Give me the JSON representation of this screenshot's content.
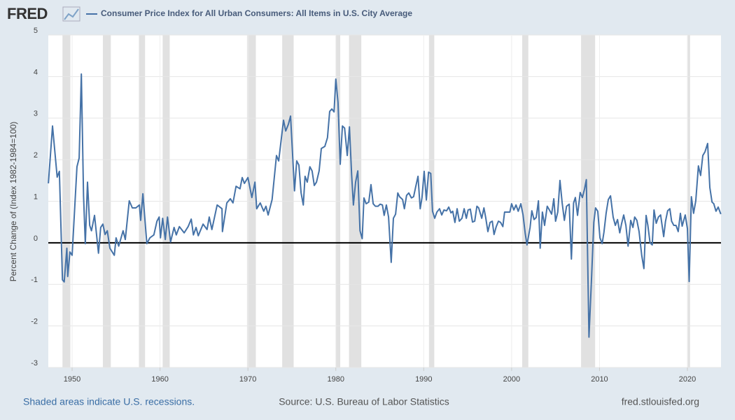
{
  "logo": "FRED",
  "footer": {
    "recession_note": "Shaded areas indicate U.S. recessions.",
    "source": "Source: U.S. Bureau of Labor Statistics",
    "site": "fred.stlouisfed.org"
  },
  "chart_data": {
    "type": "line",
    "y_label": "Percent Change of (Index 1982-1984=100)",
    "xlim": [
      1947.29,
      2023.82
    ],
    "ylim": [
      -3,
      5
    ],
    "xticks": [
      1950,
      1960,
      1970,
      1980,
      1990,
      2000,
      2010,
      2020
    ],
    "yticks": [
      -3,
      -2,
      -1,
      0,
      1,
      2,
      3,
      4,
      5
    ],
    "grid": true,
    "recessions": [
      [
        1948.9,
        1949.8
      ],
      [
        1953.5,
        1954.4
      ],
      [
        1957.6,
        1958.3
      ],
      [
        1960.3,
        1961.1
      ],
      [
        1969.9,
        1970.9
      ],
      [
        1973.9,
        1975.2
      ],
      [
        1980.0,
        1980.5
      ],
      [
        1981.5,
        1982.9
      ],
      [
        1990.6,
        1991.2
      ],
      [
        2001.2,
        2001.9
      ],
      [
        2007.9,
        2009.5
      ],
      [
        2020.0,
        2020.3
      ]
    ],
    "x": [
      1947.3,
      1947.77,
      1948.3,
      1948.55,
      1948.9,
      1949.1,
      1949.4,
      1949.5,
      1949.75,
      1950.0,
      1950.55,
      1950.8,
      1951.05,
      1951.3,
      1951.5,
      1951.75,
      1952.0,
      1952.2,
      1952.55,
      1953.0,
      1953.25,
      1953.5,
      1953.75,
      1954.0,
      1954.3,
      1954.8,
      1955.0,
      1955.3,
      1955.8,
      1956.05,
      1956.5,
      1956.85,
      1957.25,
      1957.65,
      1957.8,
      1958.05,
      1958.5,
      1958.85,
      1959.3,
      1959.65,
      1959.9,
      1960.05,
      1960.3,
      1960.6,
      1960.85,
      1961.2,
      1961.6,
      1961.85,
      1962.2,
      1962.75,
      1963.2,
      1963.55,
      1963.8,
      1964.1,
      1964.35,
      1964.9,
      1965.35,
      1965.6,
      1965.9,
      1966.5,
      1967.05,
      1967.1,
      1967.6,
      1968.0,
      1968.3,
      1968.65,
      1969.1,
      1969.35,
      1969.6,
      1970.0,
      1970.45,
      1970.8,
      1971.0,
      1971.4,
      1971.8,
      1972.05,
      1972.3,
      1972.75,
      1973.25,
      1973.5,
      1974.05,
      1974.3,
      1974.6,
      1974.85,
      1975.3,
      1975.55,
      1975.8,
      1976.05,
      1976.3,
      1976.5,
      1976.75,
      1977.05,
      1977.3,
      1977.55,
      1977.8,
      1978.1,
      1978.35,
      1978.75,
      1979.05,
      1979.3,
      1979.55,
      1979.8,
      1980.0,
      1980.25,
      1980.5,
      1980.75,
      1981.0,
      1981.3,
      1981.55,
      1981.8,
      1982.0,
      1982.25,
      1982.5,
      1982.75,
      1983.0,
      1983.2,
      1983.45,
      1983.75,
      1984.0,
      1984.25,
      1984.5,
      1984.8,
      1985.05,
      1985.3,
      1985.5,
      1985.75,
      1986.0,
      1986.3,
      1986.55,
      1986.8,
      1987.05,
      1987.25,
      1987.6,
      1987.8,
      1988.05,
      1988.3,
      1988.6,
      1988.85,
      1989.1,
      1989.35,
      1989.6,
      1989.8,
      1990.05,
      1990.3,
      1990.55,
      1990.8,
      1991.0,
      1991.25,
      1991.5,
      1991.8,
      1992.05,
      1992.3,
      1992.6,
      1992.85,
      1993.1,
      1993.3,
      1993.55,
      1993.8,
      1994.05,
      1994.35,
      1994.6,
      1994.85,
      1995.05,
      1995.3,
      1995.55,
      1995.8,
      1996.05,
      1996.25,
      1996.6,
      1996.85,
      1997.05,
      1997.3,
      1997.55,
      1997.8,
      1998.0,
      1998.25,
      1998.5,
      1998.75,
      1999.0,
      1999.2,
      1999.55,
      1999.8,
      2000.0,
      2000.25,
      2000.5,
      2000.75,
      2001.05,
      2001.3,
      2001.55,
      2001.75,
      2002.1,
      2002.3,
      2002.55,
      2002.8,
      2003.05,
      2003.25,
      2003.5,
      2003.75,
      2004.05,
      2004.3,
      2004.55,
      2004.8,
      2005.0,
      2005.25,
      2005.5,
      2005.75,
      2006.0,
      2006.25,
      2006.55,
      2006.8,
      2007.05,
      2007.25,
      2007.5,
      2007.8,
      2008.05,
      2008.3,
      2008.5,
      2008.8,
      2009.1,
      2009.35,
      2009.55,
      2009.8,
      2010.05,
      2010.3,
      2010.5,
      2010.75,
      2011.0,
      2011.25,
      2011.55,
      2011.8,
      2012.05,
      2012.3,
      2012.5,
      2012.75,
      2013.0,
      2013.25,
      2013.55,
      2013.8,
      2014.0,
      2014.25,
      2014.5,
      2014.8,
      2015.05,
      2015.3,
      2015.5,
      2015.75,
      2016.0,
      2016.2,
      2016.45,
      2016.7,
      2016.95,
      2017.3,
      2017.5,
      2017.75,
      2018.0,
      2018.2,
      2018.45,
      2018.7,
      2018.95,
      2019.2,
      2019.4,
      2019.75,
      2020.0,
      2020.2,
      2020.45,
      2020.7,
      2020.95,
      2021.25,
      2021.5,
      2021.75,
      2022.0,
      2022.3,
      2022.55,
      2022.8,
      2023.0,
      2023.25,
      2023.5,
      2023.8
    ],
    "series": [
      {
        "name": "Consumer Price Index for All Urban Consumers: All Items in U.S. City Average",
        "color": "#4572a7",
        "values": [
          1.43,
          2.81,
          1.58,
          1.72,
          -0.89,
          -0.94,
          -0.13,
          -0.81,
          -0.22,
          -0.3,
          1.83,
          2.04,
          4.06,
          1.13,
          -0.02,
          1.46,
          0.42,
          0.29,
          0.66,
          -0.25,
          0.37,
          0.45,
          0.2,
          0.29,
          -0.13,
          -0.3,
          0.12,
          -0.08,
          0.29,
          0.08,
          1.01,
          0.84,
          0.84,
          0.91,
          0.54,
          1.18,
          -0.02,
          0.12,
          0.19,
          0.52,
          0.62,
          0.12,
          0.59,
          0.08,
          0.62,
          0.02,
          0.37,
          0.19,
          0.39,
          0.24,
          0.39,
          0.57,
          0.19,
          0.37,
          0.17,
          0.45,
          0.32,
          0.62,
          0.32,
          0.91,
          0.82,
          0.27,
          0.96,
          1.06,
          0.96,
          1.36,
          1.3,
          1.57,
          1.43,
          1.57,
          1.09,
          1.46,
          0.82,
          0.96,
          0.76,
          0.88,
          0.67,
          1.04,
          2.1,
          1.97,
          2.95,
          2.69,
          2.85,
          3.05,
          1.25,
          1.97,
          1.87,
          1.2,
          0.91,
          1.6,
          1.46,
          1.83,
          1.73,
          1.38,
          1.46,
          1.73,
          2.27,
          2.32,
          2.53,
          3.16,
          3.22,
          3.15,
          3.94,
          3.38,
          1.89,
          2.81,
          2.76,
          2.1,
          2.79,
          1.63,
          0.91,
          1.46,
          1.73,
          0.29,
          0.1,
          1.08,
          0.94,
          0.98,
          1.4,
          0.94,
          0.88,
          0.88,
          0.93,
          0.91,
          0.66,
          0.91,
          0.62,
          -0.47,
          0.59,
          0.69,
          1.2,
          1.11,
          1.04,
          0.82,
          1.14,
          1.2,
          1.08,
          1.11,
          1.36,
          1.6,
          0.82,
          1.08,
          1.72,
          1.03,
          1.7,
          1.67,
          0.76,
          0.59,
          0.74,
          0.82,
          0.67,
          0.79,
          0.77,
          0.86,
          0.72,
          0.76,
          0.49,
          0.82,
          0.52,
          0.59,
          0.82,
          0.59,
          0.79,
          0.81,
          0.5,
          0.52,
          0.88,
          0.84,
          0.59,
          0.84,
          0.61,
          0.27,
          0.49,
          0.52,
          0.2,
          0.39,
          0.52,
          0.49,
          0.39,
          0.74,
          0.74,
          0.74,
          0.94,
          0.79,
          0.91,
          0.76,
          0.94,
          0.67,
          0.22,
          -0.05,
          0.37,
          0.77,
          0.56,
          0.61,
          1.01,
          -0.13,
          0.74,
          0.42,
          0.88,
          0.79,
          0.69,
          1.06,
          0.52,
          0.74,
          1.5,
          0.96,
          0.54,
          0.88,
          0.93,
          -0.39,
          0.96,
          1.09,
          0.66,
          1.21,
          1.09,
          1.3,
          1.52,
          -2.27,
          -0.81,
          0.49,
          0.84,
          0.76,
          0.12,
          -0.02,
          0.25,
          0.71,
          1.04,
          1.13,
          0.62,
          0.42,
          0.56,
          0.24,
          0.45,
          0.67,
          0.42,
          -0.08,
          0.54,
          0.37,
          0.62,
          0.54,
          0.27,
          -0.3,
          -0.62,
          0.66,
          0.42,
          0,
          -0.05,
          0.79,
          0.47,
          0.62,
          0.67,
          0.15,
          0.51,
          0.77,
          0.82,
          0.52,
          0.42,
          0.42,
          0.27,
          0.71,
          0.4,
          0.67,
          0.34,
          -0.93,
          1.11,
          0.71,
          1.01,
          1.85,
          1.62,
          2.1,
          2.19,
          2.39,
          1.33,
          0.98,
          0.94,
          0.76,
          0.86,
          0.69
        ]
      }
    ]
  }
}
